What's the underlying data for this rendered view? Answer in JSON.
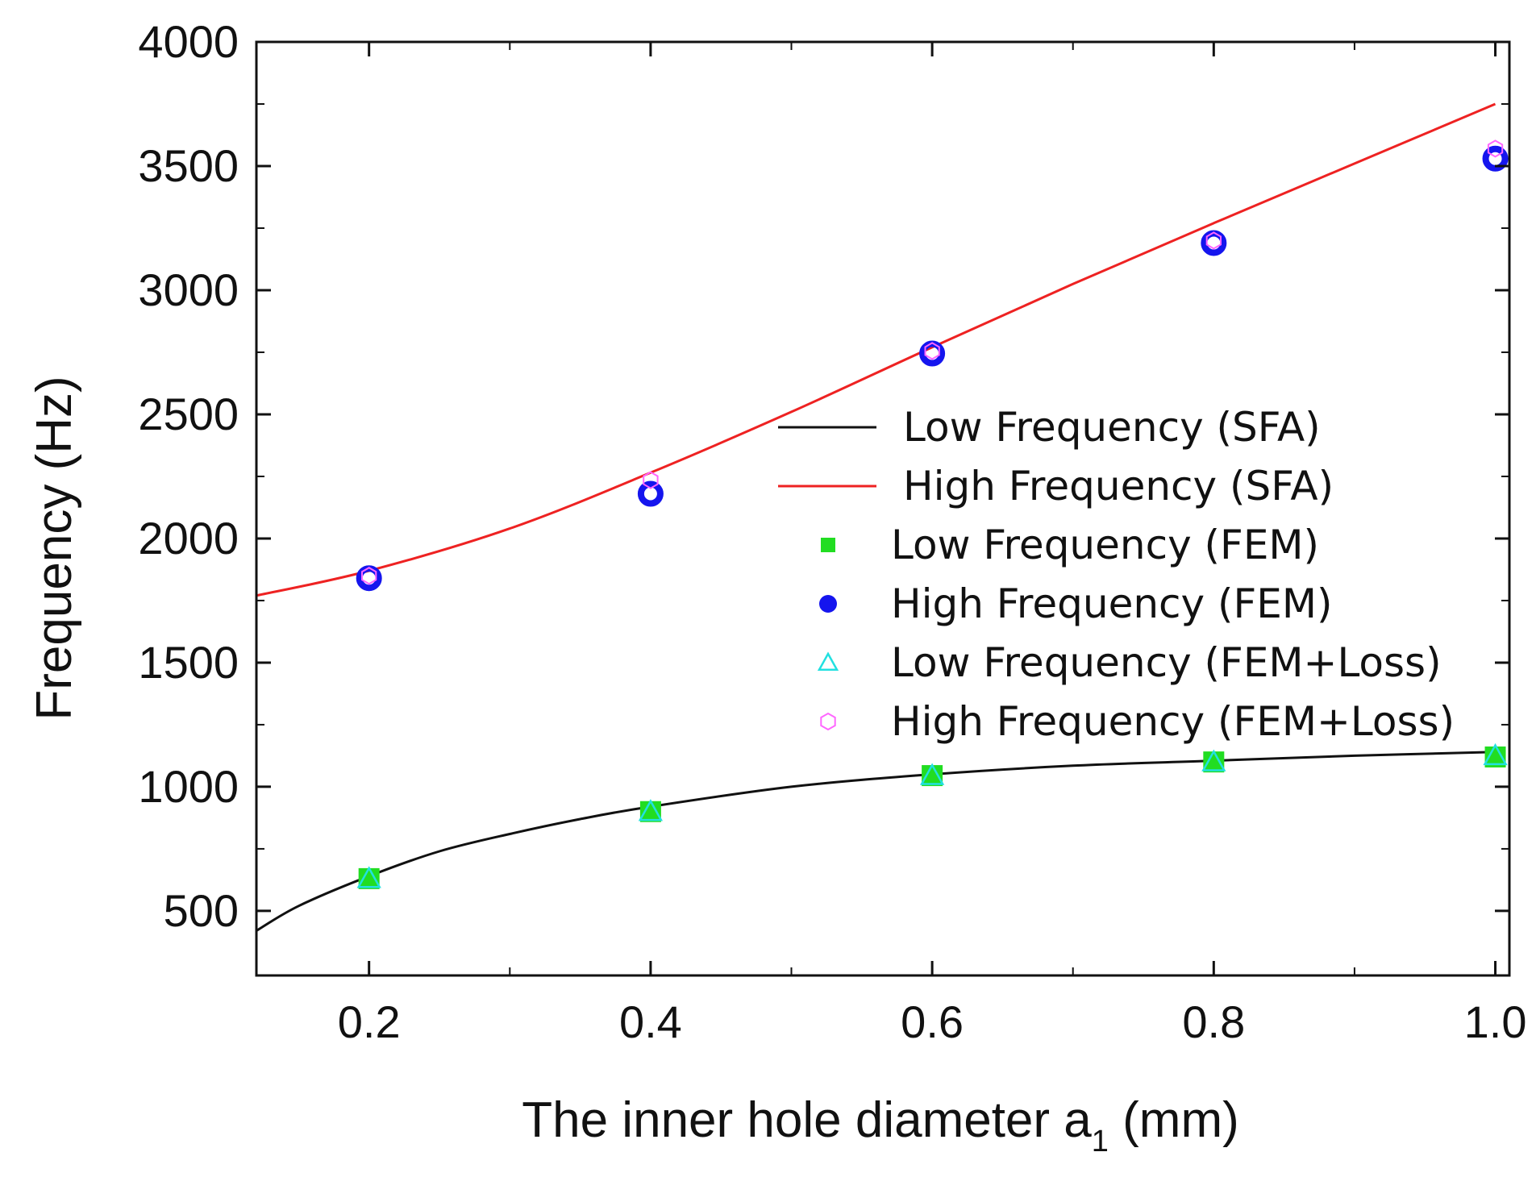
{
  "chart_data": {
    "type": "line",
    "title": "",
    "xlabel": {
      "main": "The inner hole diameter a",
      "subscript": "1",
      "unit": " (mm)"
    },
    "ylabel": "Frequency (Hz)",
    "xlim": [
      0.12,
      1.01
    ],
    "ylim": [
      240,
      4000
    ],
    "x_ticks": [
      0.2,
      0.4,
      0.6,
      0.8,
      1.0
    ],
    "x_tick_labels": [
      "0.2",
      "0.4",
      "0.6",
      "0.8",
      "1.0"
    ],
    "x_minor_ticks": [
      0.3,
      0.5,
      0.7,
      0.9
    ],
    "y_ticks": [
      500,
      1000,
      1500,
      2000,
      2500,
      3000,
      3500,
      4000
    ],
    "y_tick_labels": [
      "500",
      "1000",
      "1500",
      "2000",
      "2500",
      "3000",
      "3500",
      "4000"
    ],
    "y_minor_ticks": [
      750,
      1250,
      1750,
      2250,
      2750,
      3250,
      3750
    ],
    "grid": false,
    "legend_position": "center-right",
    "series": [
      {
        "name": "Low Frequency (SFA)",
        "kind": "line",
        "color": "#111111",
        "x": [
          0.12,
          0.15,
          0.2,
          0.25,
          0.3,
          0.35,
          0.4,
          0.5,
          0.6,
          0.7,
          0.8,
          0.9,
          1.0
        ],
        "y": [
          420,
          520,
          640,
          740,
          810,
          870,
          920,
          1000,
          1050,
          1085,
          1105,
          1125,
          1140
        ]
      },
      {
        "name": "High Frequency (SFA)",
        "kind": "line",
        "color": "#ee2222",
        "x": [
          0.12,
          0.2,
          0.3,
          0.4,
          0.5,
          0.6,
          0.7,
          0.8,
          0.9,
          1.0
        ],
        "y": [
          1770,
          1870,
          2040,
          2265,
          2510,
          2770,
          3025,
          3270,
          3510,
          3750
        ]
      },
      {
        "name": "Low Frequency (FEM)",
        "kind": "scatter",
        "marker": "square",
        "color": "#22dd22",
        "x": [
          0.2,
          0.4,
          0.6,
          0.8,
          1.0
        ],
        "y": [
          630,
          900,
          1045,
          1100,
          1120
        ]
      },
      {
        "name": "High Frequency (FEM)",
        "kind": "scatter",
        "marker": "circle",
        "color": "#1515ee",
        "x": [
          0.2,
          0.4,
          0.6,
          0.8,
          1.0
        ],
        "y": [
          1840,
          2180,
          2745,
          3190,
          3530
        ]
      },
      {
        "name": "Low Frequency (FEM+Loss)",
        "kind": "scatter",
        "marker": "triangle",
        "color": "#22e0e0",
        "x": [
          0.2,
          0.4,
          0.6,
          0.8,
          1.0
        ],
        "y": [
          630,
          900,
          1045,
          1100,
          1125
        ]
      },
      {
        "name": "High Frequency (FEM+Loss)",
        "kind": "scatter",
        "marker": "hexagon",
        "color": "#ff66ff",
        "x": [
          0.2,
          0.4,
          0.6,
          0.8,
          1.0
        ],
        "y": [
          1850,
          2235,
          2755,
          3200,
          3570
        ]
      }
    ]
  }
}
